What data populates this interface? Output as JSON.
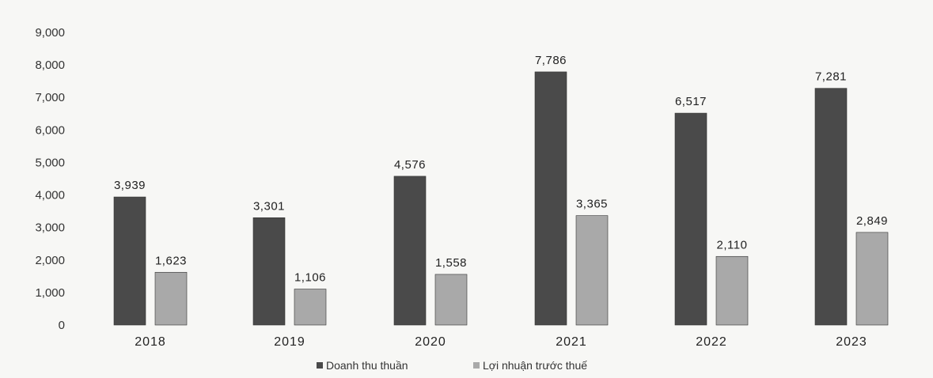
{
  "chart_data": {
    "type": "bar",
    "categories": [
      "2018",
      "2019",
      "2020",
      "2021",
      "2022",
      "2023"
    ],
    "series": [
      {
        "name": "Doanh thu thuần",
        "values": [
          3939,
          3301,
          4576,
          7786,
          6517,
          7281
        ],
        "labels": [
          "3,939",
          "3,301",
          "4,576",
          "7,786",
          "6,517",
          "7,281"
        ],
        "color": "#4a4a4a"
      },
      {
        "name": "Lợi nhuận trước thuế",
        "values": [
          1623,
          1106,
          1558,
          3365,
          2110,
          2849
        ],
        "labels": [
          "1,623",
          "1,106",
          "1,558",
          "3,365",
          "2,110",
          "2,849"
        ],
        "color": "#a9a9a9"
      }
    ],
    "yticks": [
      "0",
      "1,000",
      "2,000",
      "3,000",
      "4,000",
      "5,000",
      "6,000",
      "7,000",
      "8,000",
      "9,000"
    ],
    "ylim": [
      0,
      9000
    ],
    "grid": false,
    "legend_position": "bottom-center"
  }
}
